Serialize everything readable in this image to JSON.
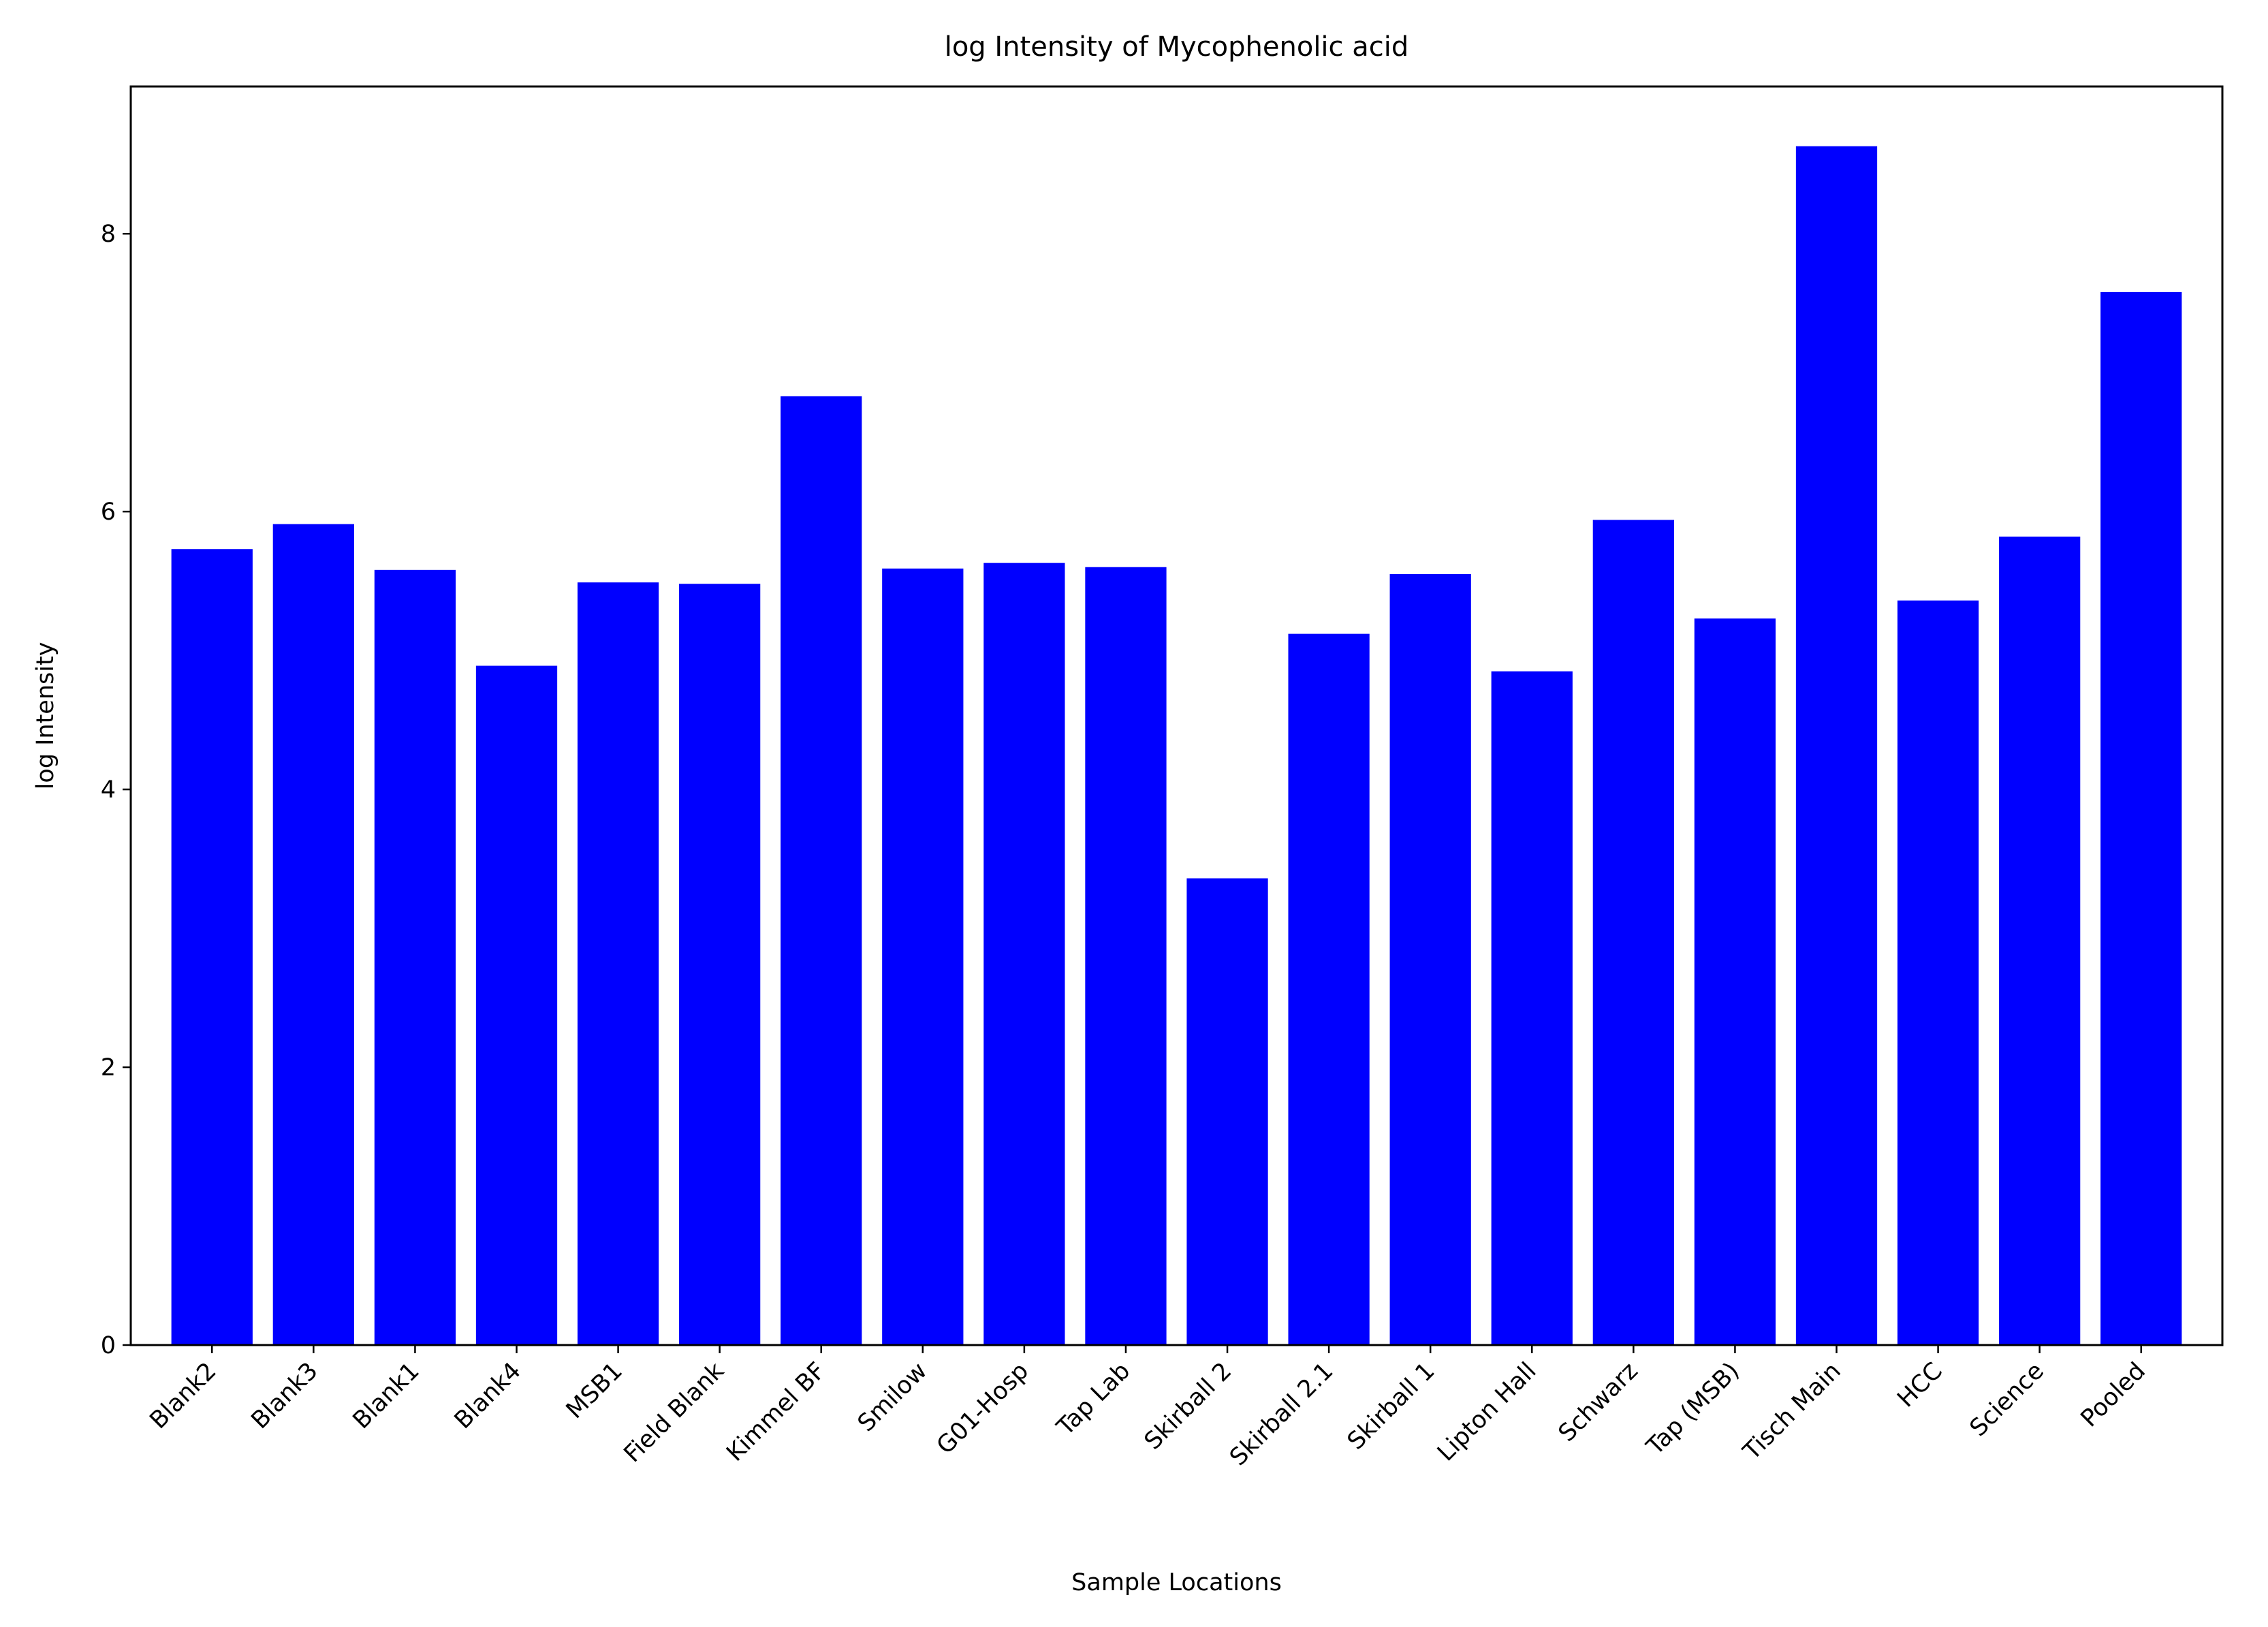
{
  "chart_data": {
    "type": "bar",
    "title": "log Intensity of Mycophenolic acid",
    "xlabel": "Sample Locations",
    "ylabel": "log Intensity",
    "categories": [
      "Blank2",
      "Blank3",
      "Blank1",
      "Blank4",
      "MSB1",
      "Field Blank",
      "Kimmel BF",
      "Smilow",
      "G01-Hosp",
      "Tap Lab",
      "Skirball 2",
      "Skirball 2.1",
      "Skirball 1",
      "Lipton Hall",
      "Schwarz",
      "Tap (MSB)",
      "Tisch Main",
      "HCC",
      "Science",
      "Pooled"
    ],
    "values": [
      5.73,
      5.91,
      5.58,
      4.89,
      5.49,
      5.48,
      6.83,
      5.59,
      5.63,
      5.6,
      3.36,
      5.12,
      5.55,
      4.85,
      5.94,
      5.23,
      8.63,
      5.36,
      5.82,
      7.58
    ],
    "yticks": [
      0,
      2,
      4,
      6,
      8
    ],
    "ylim": [
      0,
      9.06
    ],
    "bar_color": "#0000ff",
    "grid": false,
    "legend": "none"
  }
}
